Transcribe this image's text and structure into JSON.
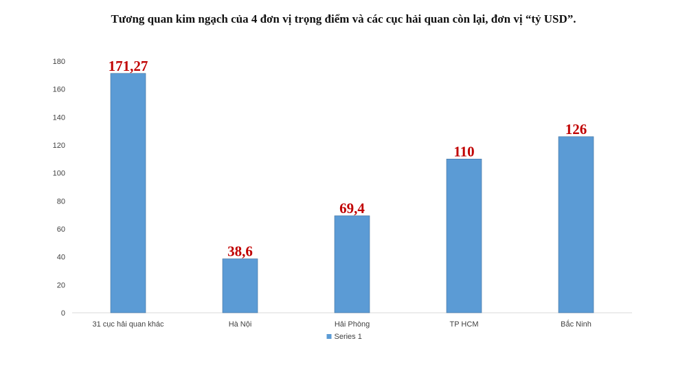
{
  "chart_data": {
    "type": "bar",
    "title": "Tương quan kim ngạch của 4 đơn vị trọng điểm và các cục hải quan còn lại, đơn vị “tỷ USD”.",
    "categories": [
      "31 cục hải quan khác",
      "Hà Nội",
      "Hải Phòng",
      "TP HCM",
      "Bắc Ninh"
    ],
    "series": [
      {
        "name": "Series 1",
        "values": [
          171.27,
          38.6,
          69.4,
          110,
          126
        ],
        "color": "#5b9bd5"
      }
    ],
    "data_labels": [
      "171,27",
      "38,6",
      "69,4",
      "110",
      "126"
    ],
    "data_label_color": "#c00000",
    "ylim": [
      0,
      180
    ],
    "yticks": [
      0,
      20,
      40,
      60,
      80,
      100,
      120,
      140,
      160,
      180
    ],
    "grid": false,
    "legend": "bottom-center"
  }
}
